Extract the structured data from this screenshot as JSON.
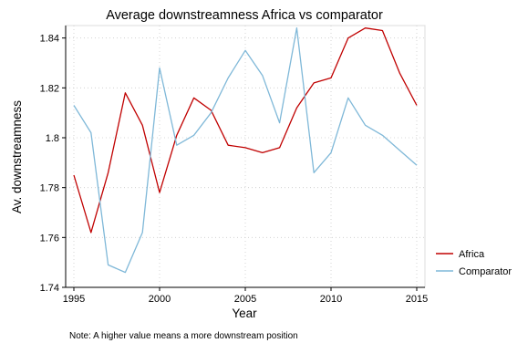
{
  "chart_data": {
    "type": "line",
    "title": "Average downstreamness Africa vs comparator",
    "xlabel": "Year",
    "ylabel": "Av. downstreamness",
    "xlim": [
      1995,
      2015
    ],
    "ylim": [
      1.74,
      1.845
    ],
    "x_ticks": [
      1995,
      2000,
      2005,
      2010,
      2015
    ],
    "y_ticks": [
      1.74,
      1.76,
      1.78,
      1.8,
      1.82,
      1.84
    ],
    "y_tick_labels": [
      "1.74",
      "1.76",
      "1.78",
      "1.8",
      "1.82",
      "1.84"
    ],
    "grid": true,
    "legend_position": "right",
    "x": [
      1995,
      1996,
      1997,
      1998,
      1999,
      2000,
      2001,
      2002,
      2003,
      2004,
      2005,
      2006,
      2007,
      2008,
      2009,
      2010,
      2011,
      2012,
      2013,
      2014,
      2015
    ],
    "series": [
      {
        "name": "Africa",
        "color": "#c00000",
        "values": [
          1.785,
          1.762,
          1.786,
          1.818,
          1.805,
          1.778,
          1.801,
          1.816,
          1.811,
          1.797,
          1.796,
          1.794,
          1.796,
          1.812,
          1.822,
          1.824,
          1.84,
          1.844,
          1.843,
          1.826,
          1.813
        ]
      },
      {
        "name": "Comparator",
        "color": "#7fb8d8",
        "values": [
          1.813,
          1.802,
          1.749,
          1.746,
          1.762,
          1.828,
          1.797,
          1.801,
          1.81,
          1.824,
          1.835,
          1.825,
          1.806,
          1.844,
          1.786,
          1.794,
          1.816,
          1.805,
          1.801,
          1.795,
          1.789
        ]
      }
    ]
  },
  "note": "Note: A higher value means a more downstream position"
}
